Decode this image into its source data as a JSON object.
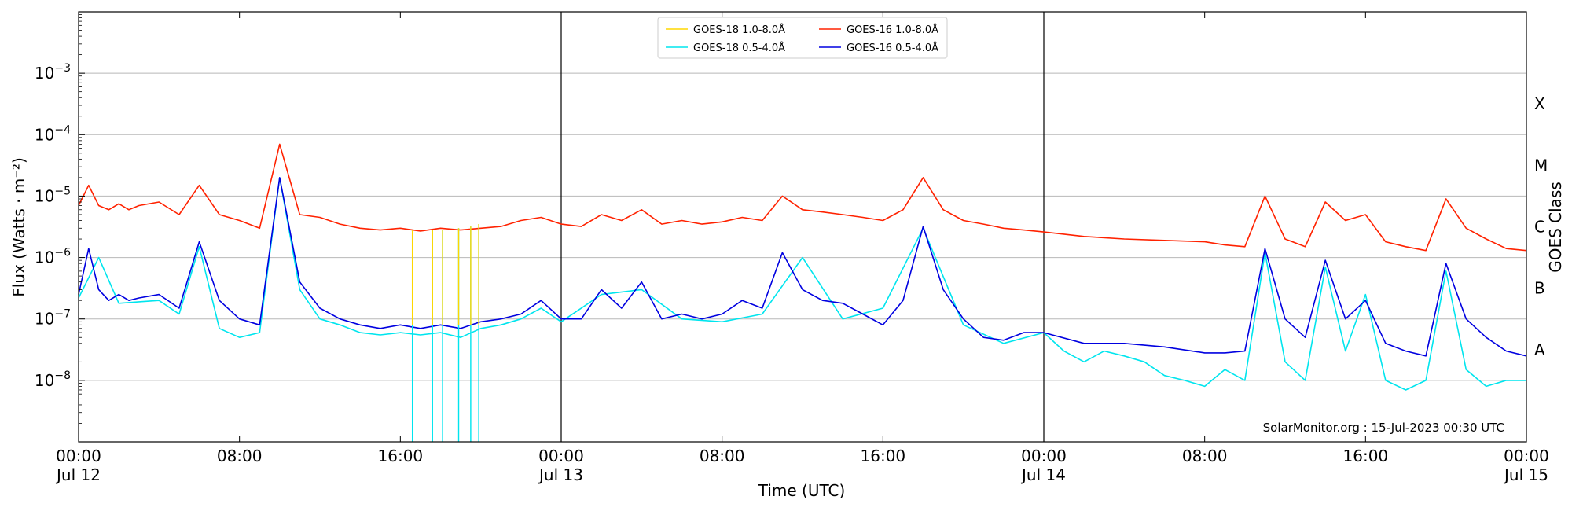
{
  "chart_data": {
    "type": "line",
    "xlabel": "Time (UTC)",
    "ylabel": "Flux (Watts · m⁻²)",
    "ylabel_right": "GOES Class",
    "yscale": "log",
    "ylim": [
      1e-09,
      0.01
    ],
    "xlim_hours": [
      0,
      72
    ],
    "x_ticks": [
      {
        "time": "00:00",
        "date": "Jul 12"
      },
      {
        "time": "08:00",
        "date": ""
      },
      {
        "time": "16:00",
        "date": ""
      },
      {
        "time": "00:00",
        "date": "Jul 13"
      },
      {
        "time": "08:00",
        "date": ""
      },
      {
        "time": "16:00",
        "date": ""
      },
      {
        "time": "00:00",
        "date": "Jul 14"
      },
      {
        "time": "08:00",
        "date": ""
      },
      {
        "time": "16:00",
        "date": ""
      },
      {
        "time": "00:00",
        "date": "Jul 15"
      }
    ],
    "y_ticks": [
      {
        "value": 1e-08,
        "base": "10",
        "exp": "−8"
      },
      {
        "value": 1e-07,
        "base": "10",
        "exp": "−7"
      },
      {
        "value": 1e-06,
        "base": "10",
        "exp": "−6"
      },
      {
        "value": 1e-05,
        "base": "10",
        "exp": "−5"
      },
      {
        "value": 0.0001,
        "base": "10",
        "exp": "−4"
      },
      {
        "value": 0.001,
        "base": "10",
        "exp": "−3"
      }
    ],
    "goes_classes": [
      {
        "label": "A",
        "value": 1e-08
      },
      {
        "label": "B",
        "value": 1e-07
      },
      {
        "label": "C",
        "value": 1e-06
      },
      {
        "label": "M",
        "value": 1e-05
      },
      {
        "label": "X",
        "value": 0.0001
      }
    ],
    "grid": "horizontal",
    "day_boundaries_hours": [
      24,
      48
    ],
    "legend_position": "top-center",
    "legend": [
      {
        "name": "GOES-18 1.0-8.0Å",
        "color": "#ffd700"
      },
      {
        "name": "GOES-16 1.0-8.0Å",
        "color": "#ff2200"
      },
      {
        "name": "GOES-18 0.5-4.0Å",
        "color": "#00e5ee"
      },
      {
        "name": "GOES-16 0.5-4.0Å",
        "color": "#0000e0"
      }
    ],
    "annotation": "SolarMonitor.org : 15-Jul-2023 00:30 UTC",
    "series": [
      {
        "name": "GOES-16 1.0-8.0Å",
        "color": "#ff2200",
        "x": [
          0,
          0.5,
          1,
          1.5,
          2,
          2.5,
          3,
          4,
          5,
          6,
          7,
          8,
          9,
          10,
          11,
          12,
          13,
          14,
          15,
          16,
          17,
          18,
          19,
          20,
          21,
          22,
          23,
          24,
          25,
          26,
          27,
          28,
          29,
          30,
          31,
          32,
          33,
          34,
          35,
          36,
          37,
          38,
          39,
          40,
          41,
          42,
          43,
          44,
          45,
          46,
          47,
          48,
          50,
          52,
          54,
          56,
          57,
          58,
          59,
          60,
          61,
          62,
          63,
          64,
          65,
          66,
          67,
          68,
          69,
          70,
          71,
          72
        ],
        "y": [
          7e-06,
          1.5e-05,
          7e-06,
          6e-06,
          7.5e-06,
          6e-06,
          7e-06,
          8e-06,
          5e-06,
          1.5e-05,
          5e-06,
          4e-06,
          3e-06,
          7e-05,
          5e-06,
          4.5e-06,
          3.5e-06,
          3e-06,
          2.8e-06,
          3e-06,
          2.7e-06,
          3e-06,
          2.8e-06,
          3e-06,
          3.2e-06,
          4e-06,
          4.5e-06,
          3.5e-06,
          3.2e-06,
          5e-06,
          4e-06,
          6e-06,
          3.5e-06,
          4e-06,
          3.5e-06,
          3.8e-06,
          4.5e-06,
          4e-06,
          1e-05,
          6e-06,
          5.5e-06,
          5e-06,
          4.5e-06,
          4e-06,
          6e-06,
          2e-05,
          6e-06,
          4e-06,
          3.5e-06,
          3e-06,
          2.8e-06,
          2.6e-06,
          2.2e-06,
          2e-06,
          1.9e-06,
          1.8e-06,
          1.6e-06,
          1.5e-06,
          1e-05,
          2e-06,
          1.5e-06,
          8e-06,
          4e-06,
          5e-06,
          1.8e-06,
          1.5e-06,
          1.3e-06,
          9e-06,
          3e-06,
          2e-06,
          1.4e-06,
          1.3e-06
        ]
      },
      {
        "name": "GOES-16 0.5-4.0Å",
        "color": "#0000e0",
        "x": [
          0,
          0.5,
          1,
          1.5,
          2,
          2.5,
          3,
          4,
          5,
          6,
          7,
          8,
          9,
          10,
          11,
          12,
          13,
          14,
          15,
          16,
          17,
          18,
          19,
          20,
          21,
          22,
          23,
          24,
          25,
          26,
          27,
          28,
          29,
          30,
          31,
          32,
          33,
          34,
          35,
          36,
          37,
          38,
          39,
          40,
          41,
          42,
          43,
          44,
          45,
          46,
          47,
          48,
          50,
          52,
          54,
          56,
          57,
          58,
          59,
          60,
          61,
          62,
          63,
          64,
          65,
          66,
          67,
          68,
          69,
          70,
          71,
          72
        ],
        "y": [
          2.5e-07,
          1.4e-06,
          3e-07,
          2e-07,
          2.5e-07,
          2e-07,
          2.2e-07,
          2.5e-07,
          1.5e-07,
          1.8e-06,
          2e-07,
          1e-07,
          8e-08,
          2e-05,
          4e-07,
          1.5e-07,
          1e-07,
          8e-08,
          7e-08,
          8e-08,
          7e-08,
          8e-08,
          7e-08,
          9e-08,
          1e-07,
          1.2e-07,
          2e-07,
          1e-07,
          1e-07,
          3e-07,
          1.5e-07,
          4e-07,
          1e-07,
          1.2e-07,
          1e-07,
          1.2e-07,
          2e-07,
          1.5e-07,
          1.2e-06,
          3e-07,
          2e-07,
          1.8e-07,
          1.2e-07,
          8e-08,
          2e-07,
          3.2e-06,
          3e-07,
          1e-07,
          5e-08,
          4.5e-08,
          6e-08,
          6e-08,
          4e-08,
          4e-08,
          3.5e-08,
          2.8e-08,
          2.8e-08,
          3e-08,
          1.4e-06,
          1e-07,
          5e-08,
          9e-07,
          1e-07,
          2e-07,
          4e-08,
          3e-08,
          2.5e-08,
          8e-07,
          1e-07,
          5e-08,
          3e-08,
          2.5e-08
        ]
      },
      {
        "name": "GOES-18 0.5-4.0Å",
        "color": "#00e5ee",
        "x": [
          0,
          1,
          2,
          3,
          4,
          5,
          6,
          7,
          8,
          9,
          10,
          11,
          12,
          13,
          14,
          15,
          16,
          17,
          18,
          19,
          20,
          21,
          22,
          23,
          24,
          26,
          28,
          30,
          32,
          34,
          36,
          38,
          40,
          42,
          44,
          46,
          48,
          49,
          50,
          51,
          52,
          53,
          54,
          55,
          56,
          57,
          58,
          59,
          60,
          61,
          62,
          63,
          64,
          65,
          66,
          67,
          68,
          69,
          70,
          71,
          72
        ],
        "y": [
          2.2e-07,
          1e-06,
          1.8e-07,
          1.9e-07,
          2e-07,
          1.2e-07,
          1.5e-06,
          7e-08,
          5e-08,
          6e-08,
          2e-05,
          3e-07,
          1e-07,
          8e-08,
          6e-08,
          5.5e-08,
          6e-08,
          5.5e-08,
          6e-08,
          5e-08,
          7e-08,
          8e-08,
          1e-07,
          1.5e-07,
          9e-08,
          2.5e-07,
          3e-07,
          1e-07,
          9e-08,
          1.2e-07,
          1e-06,
          1e-07,
          1.5e-07,
          3e-06,
          8e-08,
          4e-08,
          6e-08,
          3e-08,
          2e-08,
          3e-08,
          2.5e-08,
          2e-08,
          1.2e-08,
          1e-08,
          8e-09,
          1.5e-08,
          1e-08,
          1.2e-06,
          2e-08,
          1e-08,
          7e-07,
          3e-08,
          2.5e-07,
          1e-08,
          7e-09,
          1e-08,
          6e-07,
          1.5e-08,
          8e-09,
          1e-08,
          1e-08
        ]
      },
      {
        "name": "GOES-18 1.0-8.0Å",
        "color": "#ffd700",
        "x": [
          16.6,
          17.6,
          18.1,
          18.9,
          19.5,
          19.9
        ],
        "y": [
          2.8e-06,
          2.8e-06,
          2.8e-06,
          3e-06,
          3.2e-06,
          3.5e-06
        ]
      }
    ],
    "dropouts_hours": [
      16.6,
      17.6,
      18.1,
      18.9,
      19.5,
      19.9
    ]
  }
}
